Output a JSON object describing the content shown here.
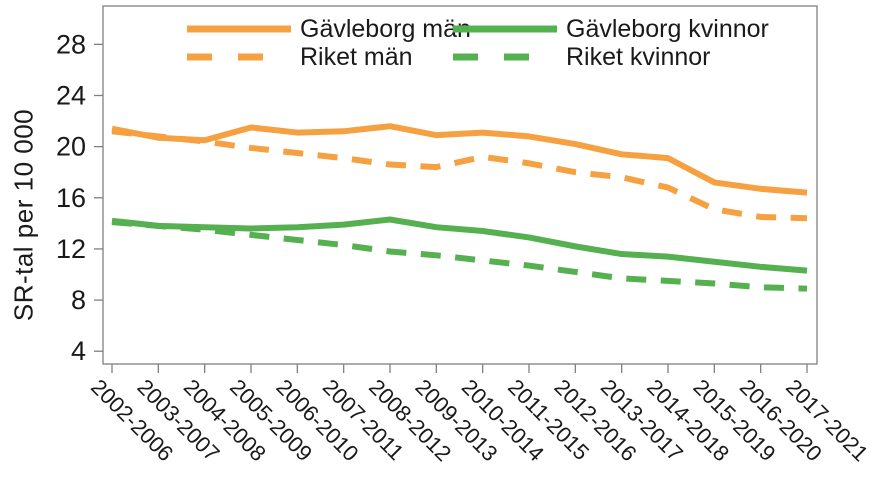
{
  "figure": {
    "background": "#ffffff",
    "frame_color": "#7f7f7f",
    "text_color": "#1a1a1a"
  },
  "chart_data": {
    "type": "line",
    "title": "",
    "xlabel": "",
    "ylabel": "SR-tal per 10 000",
    "ylim": [
      3,
      31
    ],
    "yticks": [
      4,
      8,
      12,
      16,
      20,
      24,
      28
    ],
    "grid": false,
    "legend_position": "top-inside-two-columns",
    "categories": [
      "2002-2006",
      "2003-2007",
      "2004-2008",
      "2005-2009",
      "2006-2010",
      "2007-2011",
      "2008-2012",
      "2009-2013",
      "2010-2014",
      "2011-2015",
      "2012-2016",
      "2013-2017",
      "2014-2018",
      "2015-2019",
      "2016-2020",
      "2017-2021"
    ],
    "series": [
      {
        "name": "Gävleborg män",
        "color": "#F5A142",
        "style": "solid",
        "values": [
          21.4,
          20.7,
          20.5,
          21.5,
          21.1,
          21.2,
          21.6,
          20.9,
          21.1,
          20.8,
          20.2,
          19.4,
          19.1,
          17.2,
          16.7,
          16.4
        ]
      },
      {
        "name": "Riket män",
        "color": "#F5A142",
        "style": "dashed",
        "values": [
          21.2,
          20.8,
          20.4,
          19.9,
          19.5,
          19.1,
          18.6,
          18.4,
          19.2,
          18.7,
          18.0,
          17.6,
          16.8,
          15.1,
          14.5,
          14.4
        ]
      },
      {
        "name": "Gävleborg kvinnor",
        "color": "#55B14F",
        "style": "solid",
        "values": [
          14.2,
          13.8,
          13.7,
          13.6,
          13.7,
          13.9,
          14.3,
          13.7,
          13.4,
          12.9,
          12.2,
          11.6,
          11.4,
          11.0,
          10.6,
          10.3
        ]
      },
      {
        "name": "Riket kvinnor",
        "color": "#55B14F",
        "style": "dashed",
        "values": [
          14.1,
          13.8,
          13.5,
          13.1,
          12.7,
          12.3,
          11.8,
          11.5,
          11.1,
          10.7,
          10.2,
          9.7,
          9.5,
          9.3,
          9.0,
          8.9
        ]
      }
    ]
  }
}
